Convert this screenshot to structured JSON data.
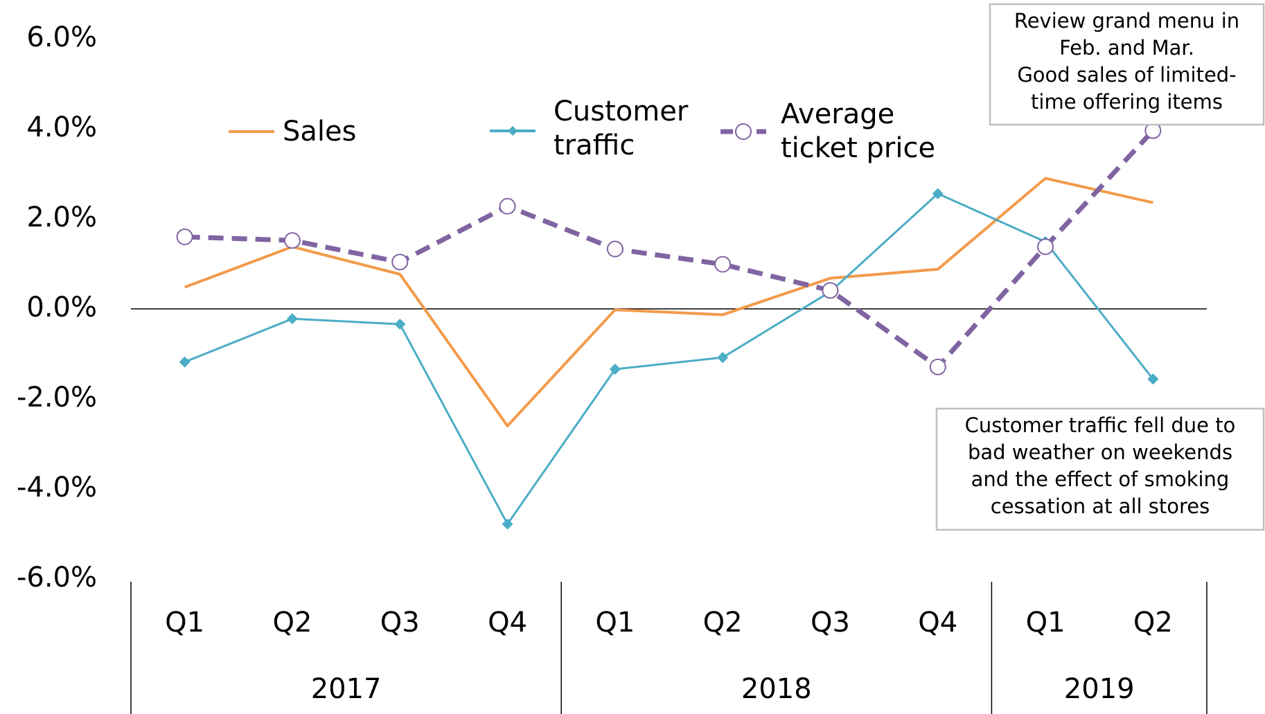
{
  "chart_data": {
    "type": "line",
    "categories": [
      "Q1",
      "Q2",
      "Q3",
      "Q4",
      "Q1",
      "Q2",
      "Q3",
      "Q4",
      "Q1",
      "Q2"
    ],
    "x_groups": [
      {
        "label": "2017",
        "size": 4
      },
      {
        "label": "2018",
        "size": 4
      },
      {
        "label": "2019",
        "size": 2
      }
    ],
    "series": [
      {
        "name": "Sales",
        "color": "#f39a4b",
        "values": [
          0.48,
          1.38,
          0.77,
          -2.6,
          -0.02,
          -0.13,
          0.68,
          0.88,
          2.9,
          2.36
        ]
      },
      {
        "name": "Customer traffic",
        "color": "#4bacc6",
        "marker": "diamond",
        "values": [
          -1.18,
          -0.22,
          -0.34,
          -4.78,
          -1.34,
          -1.08,
          0.38,
          2.56,
          1.49,
          -1.56
        ]
      },
      {
        "name": "Average ticket price",
        "color": "#8064a2",
        "marker": "circle",
        "dashed": true,
        "values": [
          1.6,
          1.52,
          1.04,
          2.28,
          1.33,
          0.99,
          0.41,
          -1.29,
          1.38,
          3.96
        ]
      }
    ],
    "ylim": [
      -6,
      6
    ],
    "yticks": [
      {
        "value": -6,
        "label": "-6.0%"
      },
      {
        "value": -4,
        "label": "-4.0%"
      },
      {
        "value": -2,
        "label": "-2.0%"
      },
      {
        "value": 0,
        "label": "0.0%"
      },
      {
        "value": 2,
        "label": "2.0%"
      },
      {
        "value": 4,
        "label": "4.0%"
      },
      {
        "value": 6,
        "label": "6.0%"
      }
    ],
    "annotations": [
      {
        "lines": [
          "Review grand menu in",
          "Feb. and Mar.",
          "Good sales of limited-",
          "time offering items"
        ]
      },
      {
        "lines": [
          "Customer traffic fell due to",
          "bad weather on weekends",
          "and the effect of smoking",
          "cessation at all stores"
        ]
      }
    ]
  }
}
